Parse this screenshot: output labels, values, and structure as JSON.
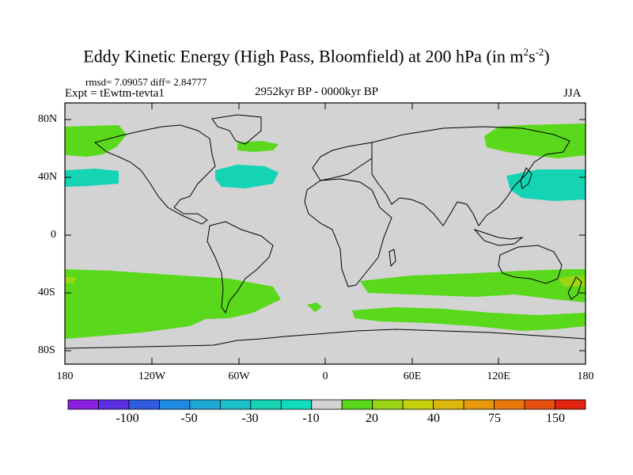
{
  "title": {
    "main": "Eddy Kinetic Energy (High Pass, Bloomfield) at 200 hPa (in m",
    "unit_sup1": "2",
    "unit_mid": "s",
    "unit_sup2": "-2",
    "unit_end": ")"
  },
  "stats": "rmsd= 7.09057 diff= 2.84777",
  "expt": "Expt = tEwtm-tevta1",
  "period": "2952kyr BP - 0000kyr BP",
  "season": "JJA",
  "map": {
    "projection": "cylindrical equidistant",
    "lon_range": [
      -180,
      180
    ],
    "lat_range": [
      -90,
      90
    ],
    "y_tick_labels": [
      "80N",
      "40N",
      "0",
      "40S",
      "80S"
    ],
    "x_tick_labels": [
      "180",
      "120W",
      "60W",
      "0",
      "60E",
      "120E",
      "180"
    ],
    "background_color": "#d3d3d3",
    "coastline_color": "#000000"
  },
  "colorbar": {
    "labels": [
      "-100",
      "-50",
      "-30",
      "-10",
      "20",
      "40",
      "75",
      "150"
    ],
    "colors": [
      "#8a1fe0",
      "#5b2fe0",
      "#2f5be0",
      "#1e8ae0",
      "#1ea8d8",
      "#18c0c8",
      "#14d4b4",
      "#10dcc0",
      "#d3d3d3",
      "#5ad81c",
      "#9ad414",
      "#c8d00e",
      "#dcb80c",
      "#e89a0c",
      "#e8780c",
      "#e85010",
      "#e02410"
    ]
  },
  "anomaly_regions": [
    {
      "name": "north-pacific-band",
      "value": "20",
      "color": "#5ad81c"
    },
    {
      "name": "north-atlantic-band",
      "value": "20",
      "color": "#5ad81c"
    },
    {
      "name": "north-asia-band",
      "value": "20",
      "color": "#5ad81c"
    },
    {
      "name": "east-pacific-midlat",
      "value": "-10",
      "color": "#14d4b4"
    },
    {
      "name": "west-atlantic-midlat",
      "value": "-10",
      "color": "#14d4b4"
    },
    {
      "name": "japan-midlat",
      "value": "-10",
      "color": "#14d4b4"
    },
    {
      "name": "south-pacific-band",
      "value": "20",
      "color": "#5ad81c"
    },
    {
      "name": "south-indian-band",
      "value": "20",
      "color": "#5ad81c"
    },
    {
      "name": "high-south-band",
      "value": "20",
      "color": "#5ad81c"
    }
  ]
}
